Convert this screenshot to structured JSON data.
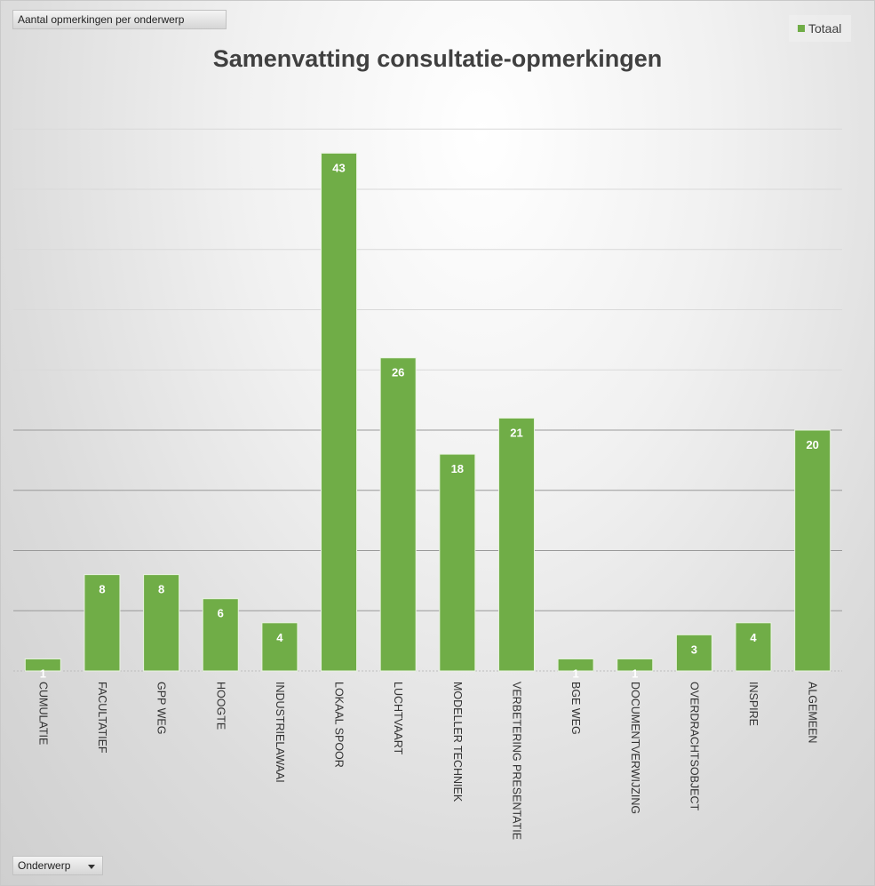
{
  "measure_field": "Aantal opmerkingen  per onderwerp",
  "axis_field": "Onderwerp",
  "colors": {
    "bar": "#70ad47",
    "bar_edge": "#e8f3df"
  },
  "chart_data": {
    "type": "bar",
    "title": "Samenvatting consultatie-opmerkingen",
    "xlabel": "",
    "ylabel": "",
    "ylim": [
      0,
      45
    ],
    "grid": true,
    "legend_position": "top-right",
    "categories": [
      "CUMULATIE",
      "FACULTATIEF",
      "GPP WEG",
      "HOOGTE",
      "INDUSTRIELAWAAI",
      "LOKAAL SPOOR",
      "LUCHTVAART",
      "MODELLER TECHNIEK",
      "VERBETERING PRESENTATIE",
      "BGE WEG",
      "DOCUMENTVERWIJZING",
      "OVERDRACHTSOBJECT",
      "INSPIRE",
      "ALGEMEEN"
    ],
    "series": [
      {
        "name": "Totaal",
        "values": [
          1,
          8,
          8,
          6,
          4,
          43,
          26,
          18,
          21,
          1,
          1,
          3,
          4,
          20
        ]
      }
    ]
  }
}
